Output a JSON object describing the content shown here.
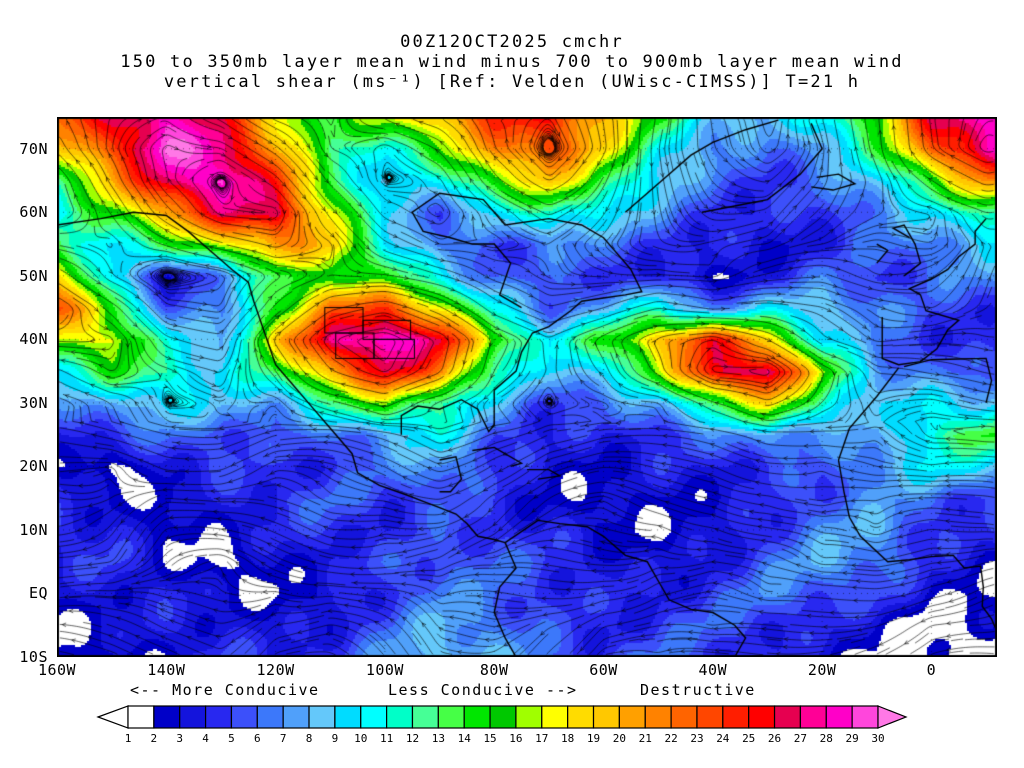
{
  "title": {
    "line1": "00Z12OCT2025 cmchr",
    "line2": "150 to 350mb layer mean wind minus 700 to 900mb layer mean wind",
    "line3": "vertical shear (ms⁻¹) [Ref: Velden (UWisc-CIMSS)] T=21 h"
  },
  "axes": {
    "lat_ticks": [
      {
        "label": "70N",
        "lat": 70
      },
      {
        "label": "60N",
        "lat": 60
      },
      {
        "label": "50N",
        "lat": 50
      },
      {
        "label": "40N",
        "lat": 40
      },
      {
        "label": "30N",
        "lat": 30
      },
      {
        "label": "20N",
        "lat": 20
      },
      {
        "label": "10N",
        "lat": 10
      },
      {
        "label": "EQ",
        "lat": 0
      },
      {
        "label": "10S",
        "lat": -10
      }
    ],
    "lon_ticks": [
      {
        "label": "160W",
        "lon": -160
      },
      {
        "label": "140W",
        "lon": -140
      },
      {
        "label": "120W",
        "lon": -120
      },
      {
        "label": "100W",
        "lon": -100
      },
      {
        "label": "80W",
        "lon": -80
      },
      {
        "label": "60W",
        "lon": -60
      },
      {
        "label": "40W",
        "lon": -40
      },
      {
        "label": "20W",
        "lon": -20
      },
      {
        "label": "0",
        "lon": 0
      }
    ]
  },
  "legend": {
    "more": "<-- More Conducive",
    "less": "Less Conducive -->",
    "destructive": "Destructive"
  },
  "colorbar": {
    "tick_labels": [
      "1",
      "2",
      "3",
      "4",
      "5",
      "6",
      "7",
      "8",
      "9",
      "10",
      "11",
      "12",
      "13",
      "14",
      "15",
      "16",
      "17",
      "18",
      "19",
      "20",
      "21",
      "22",
      "23",
      "24",
      "25",
      "26",
      "27",
      "28",
      "29",
      "30"
    ],
    "colors": [
      "#FFFFFF",
      "#0000C8",
      "#1414DC",
      "#2828F0",
      "#3C50FA",
      "#3C78FA",
      "#50A0FA",
      "#64C8FA",
      "#00DCFF",
      "#00FFFF",
      "#00FFC8",
      "#46FF96",
      "#46FF46",
      "#00E600",
      "#00C800",
      "#A0FF00",
      "#FFFF00",
      "#FFDC00",
      "#FFC800",
      "#FFA000",
      "#FF8200",
      "#FF6400",
      "#FF4600",
      "#FF1E00",
      "#FF0000",
      "#E60050",
      "#FF0096",
      "#FF00C8",
      "#FF46DC",
      "#FF78E6"
    ]
  },
  "chart_data": {
    "type": "heatmap",
    "overlay": "streamlines",
    "title": "00Z12OCT2025 cmchr 150-350mb minus 700-900mb layer mean wind vertical shear",
    "units": "ms⁻¹",
    "scale_min": 1,
    "scale_max": 30,
    "x_tick_labels": [
      "160W",
      "140W",
      "120W",
      "100W",
      "80W",
      "60W",
      "40W",
      "20W",
      "0"
    ],
    "y_tick_labels": [
      "70N",
      "60N",
      "50N",
      "40N",
      "30N",
      "20N",
      "10N",
      "EQ",
      "10S"
    ],
    "grid_lons": [
      -160,
      -150,
      -140,
      -130,
      -120,
      -110,
      -100,
      -90,
      -80,
      -70,
      -60,
      -50,
      -40,
      -30,
      -20,
      -10,
      0,
      10
    ],
    "grid_lats": [
      75,
      70,
      65,
      60,
      55,
      50,
      45,
      40,
      35,
      30,
      25,
      20,
      15,
      10,
      5,
      0,
      -5,
      -10
    ],
    "values": [
      [
        22,
        26,
        29,
        25,
        18,
        14,
        17,
        20,
        24,
        25,
        20,
        14,
        9,
        8,
        11,
        16,
        26,
        29
      ],
      [
        18,
        24,
        30,
        28,
        21,
        12,
        11,
        15,
        21,
        24,
        18,
        11,
        7,
        6,
        8,
        13,
        23,
        28
      ],
      [
        13,
        20,
        27,
        30,
        24,
        14,
        8,
        10,
        16,
        19,
        14,
        9,
        6,
        5,
        6,
        9,
        15,
        21
      ],
      [
        10,
        15,
        21,
        26,
        27,
        17,
        9,
        6,
        9,
        12,
        10,
        7,
        5,
        4,
        5,
        7,
        9,
        13
      ],
      [
        13,
        10,
        13,
        17,
        21,
        19,
        11,
        6,
        5,
        7,
        6,
        5,
        4,
        3,
        4,
        6,
        7,
        9
      ],
      [
        19,
        9,
        3,
        7,
        13,
        16,
        14,
        10,
        6,
        5,
        5,
        4,
        2,
        4,
        6,
        5,
        6,
        7
      ],
      [
        23,
        15,
        6,
        6,
        15,
        22,
        24,
        18,
        10,
        6,
        8,
        11,
        7,
        9,
        9,
        7,
        5,
        5
      ],
      [
        17,
        18,
        10,
        8,
        19,
        27,
        30,
        26,
        16,
        10,
        14,
        20,
        25,
        19,
        10,
        6,
        5,
        4
      ],
      [
        10,
        14,
        12,
        9,
        13,
        21,
        26,
        22,
        12,
        8,
        10,
        16,
        26,
        28,
        16,
        8,
        6,
        5
      ],
      [
        6,
        8,
        10,
        8,
        8,
        12,
        16,
        12,
        8,
        5,
        6,
        8,
        14,
        18,
        12,
        8,
        10,
        9
      ],
      [
        4,
        5,
        6,
        6,
        5,
        6,
        8,
        10,
        6,
        4,
        4,
        5,
        6,
        8,
        7,
        7,
        12,
        14
      ],
      [
        3,
        1,
        4,
        5,
        4,
        5,
        6,
        8,
        5,
        3,
        3,
        4,
        4,
        5,
        5,
        8,
        10,
        9
      ],
      [
        4,
        3,
        2,
        4,
        5,
        6,
        5,
        6,
        4,
        3,
        2,
        3,
        3,
        4,
        6,
        7,
        6,
        5
      ],
      [
        5,
        4,
        2,
        3,
        4,
        5,
        4,
        5,
        5,
        4,
        3,
        2,
        3,
        5,
        7,
        8,
        5,
        4
      ],
      [
        4,
        5,
        3,
        1,
        3,
        4,
        5,
        6,
        6,
        5,
        4,
        3,
        4,
        6,
        8,
        7,
        4,
        3
      ],
      [
        3,
        4,
        4,
        3,
        2,
        3,
        5,
        7,
        6,
        5,
        4,
        4,
        5,
        7,
        6,
        5,
        3,
        2
      ],
      [
        2,
        3,
        4,
        4,
        3,
        4,
        6,
        8,
        7,
        5,
        4,
        5,
        6,
        5,
        4,
        3,
        1,
        2
      ],
      [
        2,
        2,
        3,
        5,
        4,
        5,
        7,
        9,
        8,
        6,
        5,
        6,
        5,
        4,
        3,
        2,
        1,
        1
      ]
    ],
    "coastlines": [
      [
        [
          -160,
          58
        ],
        [
          -152,
          59
        ],
        [
          -146,
          60
        ],
        [
          -140,
          59.5
        ],
        [
          -136,
          57
        ],
        [
          -132,
          54
        ],
        [
          -128,
          51
        ],
        [
          -125,
          49
        ],
        [
          -124,
          46
        ],
        [
          -122,
          41
        ],
        [
          -120,
          36
        ],
        [
          -117,
          33
        ],
        [
          -114,
          30
        ],
        [
          -110,
          26
        ],
        [
          -106,
          22
        ],
        [
          -105,
          19
        ],
        [
          -101,
          17
        ],
        [
          -96,
          15.5
        ],
        [
          -93,
          14.5
        ],
        [
          -90,
          13.5
        ],
        [
          -87,
          12.5
        ],
        [
          -85,
          11
        ],
        [
          -83,
          9
        ],
        [
          -80,
          8.5
        ],
        [
          -78,
          8
        ]
      ],
      [
        [
          -97,
          25
        ],
        [
          -97,
          28
        ],
        [
          -94,
          29.5
        ],
        [
          -90,
          29
        ],
        [
          -86,
          30.5
        ],
        [
          -83,
          29
        ],
        [
          -81,
          25.5
        ],
        [
          -80,
          26.5
        ],
        [
          -80,
          32
        ],
        [
          -76,
          35
        ],
        [
          -75,
          38
        ],
        [
          -73,
          41
        ],
        [
          -70,
          42
        ],
        [
          -66,
          44.5
        ],
        [
          -64,
          46
        ],
        [
          -60,
          46.5
        ],
        [
          -56,
          47
        ],
        [
          -53,
          47.5
        ],
        [
          -55,
          51
        ],
        [
          -58,
          54
        ],
        [
          -60,
          56
        ],
        [
          -64,
          58
        ],
        [
          -70,
          59
        ],
        [
          -78,
          58
        ],
        [
          -82,
          62
        ],
        [
          -90,
          63
        ],
        [
          -95,
          60
        ],
        [
          -93,
          57
        ],
        [
          -88,
          56
        ],
        [
          -84,
          55
        ],
        [
          -80,
          55
        ],
        [
          -77,
          52
        ],
        [
          -79,
          47
        ],
        [
          -75,
          45
        ]
      ],
      [
        [
          -90,
          21
        ],
        [
          -87,
          21.5
        ],
        [
          -86,
          18
        ],
        [
          -88,
          16
        ],
        [
          -90,
          16
        ]
      ],
      [
        [
          -84,
          22.5
        ],
        [
          -80,
          23
        ],
        [
          -75,
          20.5
        ],
        [
          -77,
          20
        ]
      ],
      [
        [
          -74,
          19.5
        ],
        [
          -70,
          19.5
        ],
        [
          -68,
          18.5
        ],
        [
          -72,
          18
        ]
      ],
      [
        [
          -78,
          8
        ],
        [
          -76,
          4
        ],
        [
          -79,
          1
        ],
        [
          -80,
          -3
        ],
        [
          -78,
          -7
        ],
        [
          -76,
          -10
        ],
        [
          -75,
          -12
        ]
      ],
      [
        [
          -78,
          8
        ],
        [
          -72,
          11.5
        ],
        [
          -68,
          11
        ],
        [
          -63,
          10.5
        ],
        [
          -60,
          9
        ],
        [
          -56,
          6
        ],
        [
          -52,
          5
        ],
        [
          -50,
          2
        ],
        [
          -48,
          -1
        ],
        [
          -44,
          -2.5
        ],
        [
          -40,
          -3
        ],
        [
          -36,
          -5
        ],
        [
          -34,
          -7
        ],
        [
          -36,
          -10
        ],
        [
          -38,
          -12
        ]
      ],
      [
        [
          -56,
          60
        ],
        [
          -52,
          63
        ],
        [
          -48,
          66
        ],
        [
          -44,
          69
        ],
        [
          -40,
          71
        ],
        [
          -34,
          73
        ],
        [
          -28,
          74.5
        ]
      ],
      [
        [
          -22,
          74
        ],
        [
          -20,
          70
        ],
        [
          -24,
          66
        ],
        [
          -30,
          62
        ],
        [
          -36,
          61
        ],
        [
          -42,
          60
        ]
      ],
      [
        [
          -22,
          64
        ],
        [
          -18,
          63.5
        ],
        [
          -14,
          64.5
        ],
        [
          -17,
          66
        ],
        [
          -21,
          65.5
        ]
      ],
      [
        [
          -5,
          50
        ],
        [
          -2,
          52
        ],
        [
          -3,
          55
        ],
        [
          -5,
          58
        ],
        [
          -7,
          57.5
        ],
        [
          -4,
          56
        ]
      ],
      [
        [
          -10,
          52
        ],
        [
          -8,
          54
        ],
        [
          -10,
          55
        ]
      ],
      [
        [
          -9,
          43.5
        ],
        [
          -9,
          37
        ],
        [
          -6,
          36
        ],
        [
          -2,
          36.5
        ],
        [
          1,
          38.5
        ],
        [
          3,
          41.5
        ],
        [
          5,
          43
        ],
        [
          -1,
          44.5
        ],
        [
          -2,
          47
        ],
        [
          -4,
          48
        ],
        [
          0,
          49.5
        ],
        [
          3,
          51
        ],
        [
          5,
          53
        ],
        [
          8,
          55
        ],
        [
          8,
          57
        ],
        [
          10,
          59
        ]
      ],
      [
        [
          -6,
          35.5
        ],
        [
          -10,
          31
        ],
        [
          -15,
          26
        ],
        [
          -17,
          21
        ],
        [
          -16,
          16
        ],
        [
          -15,
          12
        ],
        [
          -13,
          9
        ],
        [
          -8,
          5
        ],
        [
          -4,
          5.3
        ],
        [
          0,
          5.8
        ],
        [
          4,
          6
        ],
        [
          6,
          4
        ],
        [
          9,
          4.3
        ],
        [
          9.5,
          1
        ],
        [
          9.3,
          -2
        ],
        [
          11,
          -4
        ],
        [
          12,
          -6
        ],
        [
          12,
          -9
        ]
      ],
      [
        [
          -5,
          35.7
        ],
        [
          0,
          36.8
        ],
        [
          5,
          36.9
        ],
        [
          10,
          37
        ],
        [
          11,
          33.5
        ],
        [
          10,
          30
        ]
      ]
    ],
    "state_boxes": [
      [
        -109,
        -102,
        37,
        41
      ],
      [
        -102,
        -94.6,
        37,
        40
      ],
      [
        -104,
        -95.3,
        40,
        43
      ],
      [
        -111,
        -104,
        41,
        45
      ]
    ]
  }
}
